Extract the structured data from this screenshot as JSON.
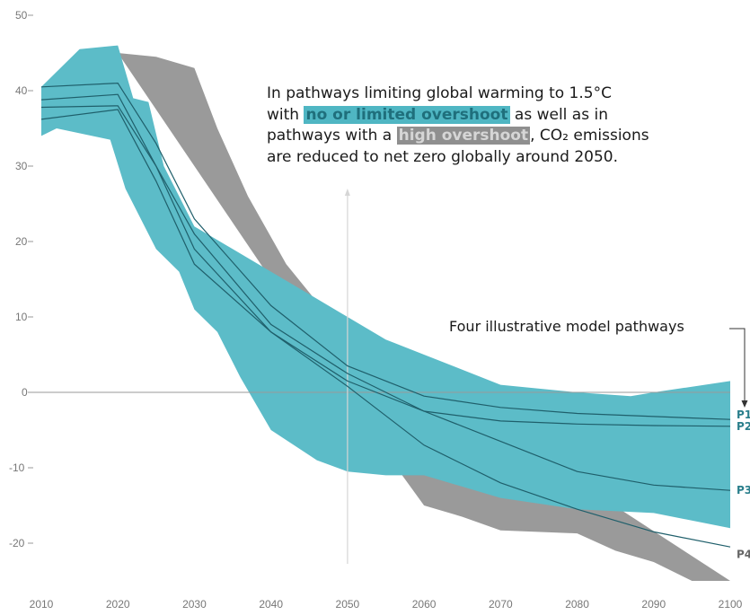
{
  "chart_data": {
    "type": "area",
    "x_ticks": [
      2010,
      2020,
      2030,
      2040,
      2050,
      2060,
      2070,
      2080,
      2090,
      2100
    ],
    "y_ticks": [
      50,
      40,
      30,
      20,
      10,
      0,
      -10,
      -20
    ],
    "y_tick_labels": [
      "50",
      "40",
      "30",
      "20",
      "10",
      "0",
      "-10",
      "-20"
    ],
    "xlim": [
      2010,
      2100
    ],
    "ylim": [
      -25,
      50
    ],
    "grid": "zero line only",
    "bands": [
      {
        "color": "#9a9a9a",
        "upper": [
          [
            2020,
            45
          ],
          [
            2025,
            44.5
          ],
          [
            2030,
            43
          ],
          [
            2033,
            35
          ],
          [
            2037,
            26
          ],
          [
            2042,
            17
          ],
          [
            2046,
            12
          ],
          [
            2050,
            8
          ]
        ],
        "lower": [
          [
            2050,
            0
          ],
          [
            2055,
            -8
          ],
          [
            2060,
            -15
          ],
          [
            2065,
            -16.5
          ],
          [
            2070,
            -18.3
          ],
          [
            2080,
            -18.7
          ],
          [
            2085,
            -21
          ],
          [
            2090,
            -22.5
          ],
          [
            2095,
            -25
          ],
          [
            2100,
            -25
          ]
        ]
      },
      {
        "color": "#5cbcc8",
        "upper": [
          [
            2010,
            40.5
          ],
          [
            2015,
            45.5
          ],
          [
            2020,
            46
          ],
          [
            2022,
            39
          ],
          [
            2024,
            38.5
          ],
          [
            2026,
            30
          ],
          [
            2030,
            22
          ],
          [
            2035,
            19
          ],
          [
            2040,
            16
          ],
          [
            2045,
            13
          ],
          [
            2050,
            10
          ],
          [
            2055,
            7
          ],
          [
            2060,
            5
          ],
          [
            2070,
            1
          ],
          [
            2080,
            0
          ],
          [
            2087,
            -0.5
          ],
          [
            2090,
            0
          ],
          [
            2100,
            1.5
          ]
        ],
        "lower": [
          [
            2010,
            34
          ],
          [
            2012,
            35
          ],
          [
            2019,
            33.5
          ],
          [
            2021,
            27
          ],
          [
            2025,
            19
          ],
          [
            2028,
            16
          ],
          [
            2030,
            11
          ],
          [
            2033,
            8
          ],
          [
            2036,
            2
          ],
          [
            2040,
            -5
          ],
          [
            2046,
            -9
          ],
          [
            2050,
            -10.5
          ],
          [
            2055,
            -11
          ],
          [
            2060,
            -11
          ],
          [
            2070,
            -14
          ],
          [
            2080,
            -15.5
          ],
          [
            2090,
            -16
          ],
          [
            2100,
            -18
          ]
        ]
      }
    ],
    "lines": [
      {
        "points": [
          [
            2010,
            40.5
          ],
          [
            2020,
            41
          ],
          [
            2025,
            33
          ],
          [
            2030,
            23
          ],
          [
            2040,
            11.5
          ],
          [
            2050,
            3.5
          ],
          [
            2060,
            -0.5
          ],
          [
            2070,
            -2
          ],
          [
            2080,
            -2.8
          ],
          [
            2090,
            -3.2
          ],
          [
            2100,
            -3.6
          ]
        ]
      },
      {
        "points": [
          [
            2010,
            38.8
          ],
          [
            2020,
            39.5
          ],
          [
            2025,
            30
          ],
          [
            2030,
            19
          ],
          [
            2040,
            8
          ],
          [
            2050,
            1.5
          ],
          [
            2060,
            -2.5
          ],
          [
            2070,
            -3.8
          ],
          [
            2080,
            -4.2
          ],
          [
            2090,
            -4.4
          ],
          [
            2100,
            -4.5
          ]
        ]
      },
      {
        "points": [
          [
            2010,
            37.8
          ],
          [
            2020,
            38
          ],
          [
            2025,
            30
          ],
          [
            2030,
            21
          ],
          [
            2040,
            9
          ],
          [
            2050,
            2.5
          ],
          [
            2060,
            -2.5
          ],
          [
            2070,
            -6.5
          ],
          [
            2080,
            -10.5
          ],
          [
            2090,
            -12.3
          ],
          [
            2100,
            -13
          ]
        ]
      },
      {
        "points": [
          [
            2010,
            36.2
          ],
          [
            2020,
            37.5
          ],
          [
            2025,
            28
          ],
          [
            2030,
            17
          ],
          [
            2040,
            8
          ],
          [
            2050,
            0.8
          ],
          [
            2060,
            -7
          ],
          [
            2070,
            -12
          ],
          [
            2080,
            -15.5
          ],
          [
            2090,
            -18.5
          ],
          [
            2100,
            -20.5
          ]
        ]
      }
    ],
    "pathway_labels": [
      {
        "text": "P1",
        "y": -3,
        "color": "#2a7f8c"
      },
      {
        "text": "P2",
        "y": -4.5,
        "color": "#2a7f8c"
      },
      {
        "text": "P3",
        "y": -13,
        "color": "#2a7f8c"
      },
      {
        "text": "P4",
        "y": -21.5,
        "color": "#666666"
      }
    ],
    "annotation": {
      "line1": "In pathways limiting global warming to 1.5°C",
      "line2_pre": "with ",
      "highlight_blue": "no or limited overshoot",
      "line2_post": " as well as in",
      "line3_pre": "pathways with a ",
      "highlight_grey": "high overshoot",
      "line3_post": ", CO₂ emissions",
      "line4": "are reduced to net zero globally around 2050."
    },
    "pathways_label": "Four illustrative model pathways",
    "colors": {
      "no_overshoot": "#5cbcc8",
      "high_overshoot": "#9a9a9a",
      "pathway_line": "#1f5f6b"
    }
  }
}
